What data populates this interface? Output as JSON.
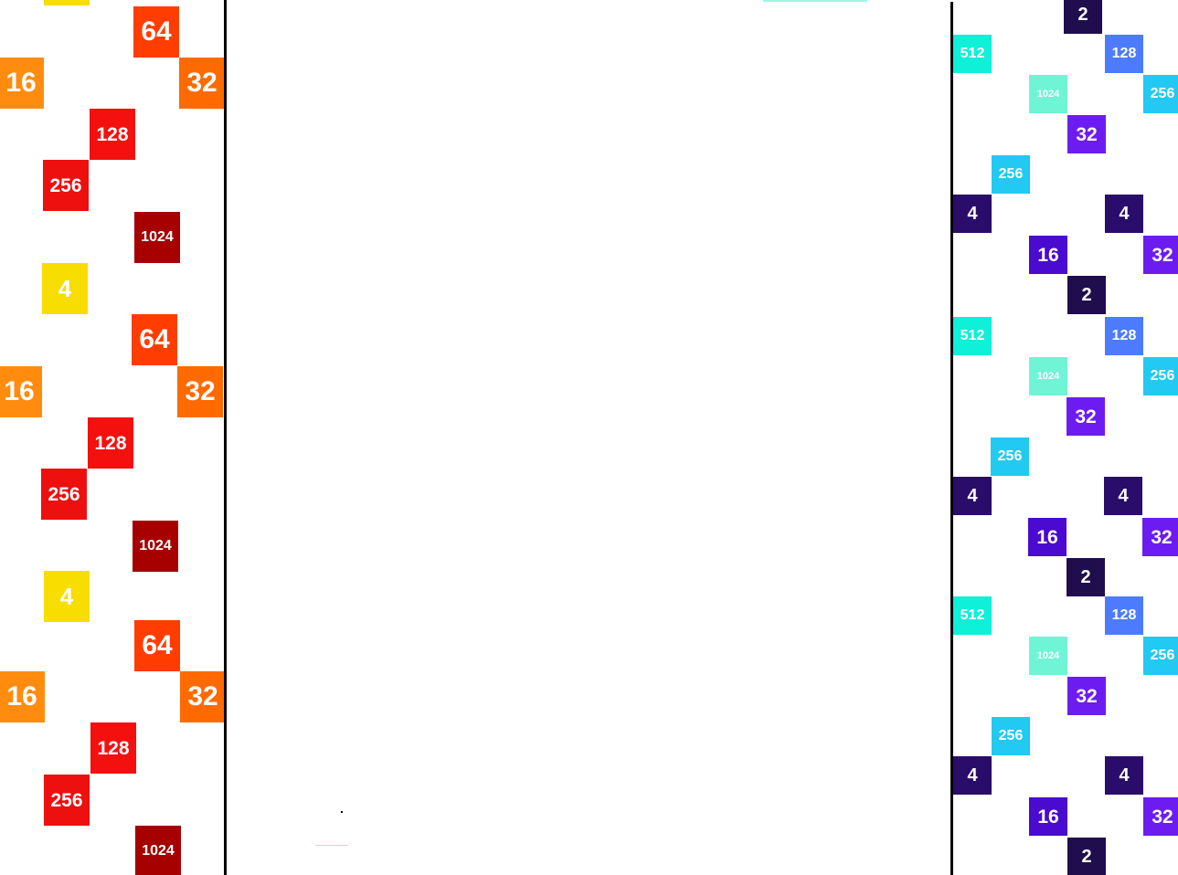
{
  "left_panel": {
    "tiles": [
      {
        "v": "64"
      },
      {
        "v": "16"
      },
      {
        "v": "32"
      },
      {
        "v": "128"
      },
      {
        "v": "256"
      },
      {
        "v": "1024"
      },
      {
        "v": "4"
      },
      {
        "v": "64"
      },
      {
        "v": "16"
      },
      {
        "v": "32"
      },
      {
        "v": "128"
      },
      {
        "v": "256"
      },
      {
        "v": "1024"
      },
      {
        "v": "4"
      },
      {
        "v": "64"
      },
      {
        "v": "16"
      },
      {
        "v": "32"
      },
      {
        "v": "128"
      },
      {
        "v": "256"
      },
      {
        "v": "1024"
      }
    ]
  },
  "right_panel": {
    "tiles": [
      {
        "v": "2"
      },
      {
        "v": "512"
      },
      {
        "v": "128"
      },
      {
        "v": "1024"
      },
      {
        "v": "256"
      },
      {
        "v": "32"
      },
      {
        "v": "256"
      },
      {
        "v": "4"
      },
      {
        "v": "4"
      },
      {
        "v": "16"
      },
      {
        "v": "32"
      },
      {
        "v": "2"
      },
      {
        "v": "512"
      },
      {
        "v": "128"
      },
      {
        "v": "1024"
      },
      {
        "v": "256"
      },
      {
        "v": "32"
      },
      {
        "v": "256"
      },
      {
        "v": "4"
      },
      {
        "v": "4"
      },
      {
        "v": "16"
      },
      {
        "v": "32"
      },
      {
        "v": "2"
      },
      {
        "v": "512"
      },
      {
        "v": "128"
      },
      {
        "v": "1024"
      },
      {
        "v": "256"
      },
      {
        "v": "32"
      },
      {
        "v": "256"
      },
      {
        "v": "4"
      },
      {
        "v": "4"
      },
      {
        "v": "16"
      },
      {
        "v": "32"
      },
      {
        "v": "2"
      }
    ]
  },
  "colors": {
    "warm": {
      "4": "#f7dd00",
      "16": "#ff8c0f",
      "32": "#ff6a00",
      "64": "#ff3d00",
      "128": "#f51010",
      "256": "#ee0f0f",
      "1024": "#a60000"
    },
    "cool": {
      "2": "#1f0d4e",
      "4": "#2a0c6b",
      "16": "#4a0ad0",
      "32": "#6c1cf0",
      "128": "#4d7bff",
      "256": "#22c9f2",
      "512": "#0ff0d8",
      "1024": "#6ff4d6"
    },
    "center_background": "#ffffff",
    "divider": "#000000"
  }
}
